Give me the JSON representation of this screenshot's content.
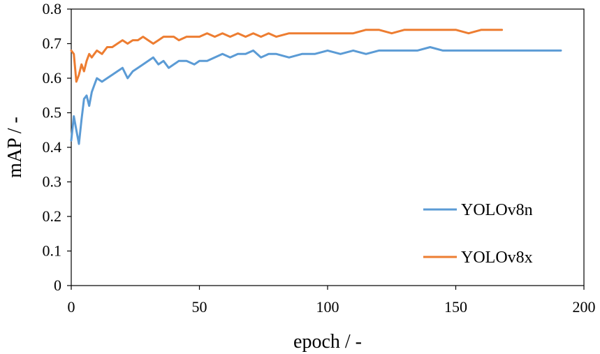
{
  "chart_data": {
    "type": "line",
    "xlabel": "epoch  / -",
    "ylabel": "mAP  / -",
    "xlim": [
      0,
      200
    ],
    "ylim": [
      0,
      0.8
    ],
    "xticks": [
      0,
      50,
      100,
      150,
      200
    ],
    "yticks": [
      0,
      0.1,
      0.2,
      0.3,
      0.4,
      0.5,
      0.6,
      0.7,
      0.8
    ],
    "ytick_labels": [
      "0",
      "0.1",
      "0.2",
      "0.3",
      "0.4",
      "0.5",
      "0.6",
      "0.7",
      "0.8"
    ],
    "grid": false,
    "legend_position": "lower-right",
    "series": [
      {
        "name": "YOLOv8n",
        "color": "#5B9BD5",
        "x": [
          0,
          1,
          2,
          3,
          4,
          5,
          6,
          7,
          8,
          9,
          10,
          12,
          14,
          16,
          18,
          20,
          22,
          24,
          26,
          28,
          30,
          32,
          34,
          36,
          38,
          40,
          42,
          45,
          48,
          50,
          53,
          56,
          59,
          62,
          65,
          68,
          71,
          74,
          77,
          80,
          85,
          90,
          95,
          100,
          105,
          110,
          115,
          120,
          125,
          130,
          135,
          140,
          145,
          150,
          155,
          160,
          165,
          170,
          175,
          180,
          185,
          191
        ],
        "y": [
          0.42,
          0.49,
          0.45,
          0.41,
          0.48,
          0.54,
          0.55,
          0.52,
          0.56,
          0.58,
          0.6,
          0.59,
          0.6,
          0.61,
          0.62,
          0.63,
          0.6,
          0.62,
          0.63,
          0.64,
          0.65,
          0.66,
          0.64,
          0.65,
          0.63,
          0.64,
          0.65,
          0.65,
          0.64,
          0.65,
          0.65,
          0.66,
          0.67,
          0.66,
          0.67,
          0.67,
          0.68,
          0.66,
          0.67,
          0.67,
          0.66,
          0.67,
          0.67,
          0.68,
          0.67,
          0.68,
          0.67,
          0.68,
          0.68,
          0.68,
          0.68,
          0.69,
          0.68,
          0.68,
          0.68,
          0.68,
          0.68,
          0.68,
          0.68,
          0.68,
          0.68,
          0.68
        ]
      },
      {
        "name": "YOLOv8x",
        "color": "#ED7D31",
        "x": [
          0,
          1,
          2,
          3,
          4,
          5,
          6,
          7,
          8,
          9,
          10,
          12,
          14,
          16,
          18,
          20,
          22,
          24,
          26,
          28,
          30,
          32,
          34,
          36,
          38,
          40,
          42,
          45,
          48,
          50,
          53,
          56,
          59,
          62,
          65,
          68,
          71,
          74,
          77,
          80,
          85,
          90,
          95,
          100,
          105,
          110,
          115,
          120,
          125,
          130,
          135,
          140,
          145,
          150,
          155,
          160,
          165,
          168
        ],
        "y": [
          0.68,
          0.67,
          0.59,
          0.61,
          0.64,
          0.62,
          0.65,
          0.67,
          0.66,
          0.67,
          0.68,
          0.67,
          0.69,
          0.69,
          0.7,
          0.71,
          0.7,
          0.71,
          0.71,
          0.72,
          0.71,
          0.7,
          0.71,
          0.72,
          0.72,
          0.72,
          0.71,
          0.72,
          0.72,
          0.72,
          0.73,
          0.72,
          0.73,
          0.72,
          0.73,
          0.72,
          0.73,
          0.72,
          0.73,
          0.72,
          0.73,
          0.73,
          0.73,
          0.73,
          0.73,
          0.73,
          0.74,
          0.74,
          0.73,
          0.74,
          0.74,
          0.74,
          0.74,
          0.74,
          0.73,
          0.74,
          0.74,
          0.74
        ]
      }
    ]
  }
}
